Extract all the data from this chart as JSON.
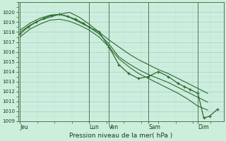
{
  "xlabel": "Pression niveau de la mer( hPa )",
  "background_color": "#cceedd",
  "grid_color_major": "#aacccc",
  "grid_color_minor": "#bbdddd",
  "line_color": "#2d6a2d",
  "ylim": [
    1009,
    1021
  ],
  "yticks": [
    1009,
    1010,
    1011,
    1012,
    1013,
    1014,
    1015,
    1016,
    1017,
    1018,
    1019,
    1020
  ],
  "day_labels": [
    "Jeu",
    "Lun",
    "Ven",
    "Sam",
    "Dim"
  ],
  "day_x": [
    0,
    3.5,
    4.5,
    6.5,
    9.0
  ],
  "xlim": [
    -0.1,
    10.3
  ],
  "lines": [
    {
      "x": [
        0,
        0.5,
        1.0,
        1.5,
        2.0,
        2.5,
        3.0,
        3.5,
        4.0,
        4.5,
        5.0,
        5.5,
        6.0,
        6.5,
        7.0,
        7.5,
        8.0,
        8.5,
        9.0,
        9.5
      ],
      "y": [
        1018.0,
        1018.7,
        1019.2,
        1019.5,
        1019.8,
        1020.0,
        1019.5,
        1018.8,
        1018.0,
        1017.2,
        1016.5,
        1015.8,
        1015.2,
        1014.7,
        1014.2,
        1013.8,
        1013.3,
        1012.8,
        1012.3,
        1011.8
      ],
      "marker": false
    },
    {
      "x": [
        0,
        0.5,
        1.0,
        1.5,
        2.0,
        2.5,
        3.0,
        3.5,
        4.0,
        4.5,
        5.0,
        5.5,
        6.0,
        6.5,
        7.0,
        7.5,
        8.0,
        8.5,
        9.0,
        9.5
      ],
      "y": [
        1018.2,
        1018.9,
        1019.4,
        1019.7,
        1019.8,
        1019.5,
        1019.0,
        1018.5,
        1017.8,
        1016.8,
        1015.5,
        1014.8,
        1014.2,
        1013.7,
        1013.3,
        1012.9,
        1012.4,
        1011.9,
        1011.4,
        1010.9
      ],
      "marker": false
    },
    {
      "x": [
        0,
        0.5,
        1.0,
        1.5,
        2.0,
        2.5,
        3.0,
        3.5,
        4.0,
        4.5,
        5.0,
        5.5,
        6.0,
        6.5,
        7.0,
        7.5,
        8.0,
        8.5,
        9.0,
        9.5
      ],
      "y": [
        1017.5,
        1018.3,
        1018.8,
        1019.2,
        1019.3,
        1019.1,
        1018.7,
        1018.2,
        1017.5,
        1016.5,
        1015.3,
        1014.5,
        1013.8,
        1013.3,
        1012.8,
        1012.3,
        1011.8,
        1011.2,
        1010.5,
        1010.1
      ],
      "marker": false
    },
    {
      "x": [
        0,
        0.4,
        0.8,
        1.2,
        1.6,
        2.0,
        2.4,
        2.8,
        3.2,
        3.5,
        4.0,
        4.5,
        5.0,
        5.5,
        6.0,
        6.5,
        7.0,
        7.5,
        8.0,
        8.3,
        8.6,
        9.0,
        9.3,
        9.6,
        10.0
      ],
      "y": [
        1017.8,
        1018.5,
        1019.0,
        1019.4,
        1019.7,
        1019.8,
        1019.6,
        1019.3,
        1018.9,
        1018.5,
        1018.0,
        1016.5,
        1014.7,
        1013.8,
        1013.3,
        1013.5,
        1014.0,
        1013.5,
        1012.8,
        1012.5,
        1012.2,
        1011.8,
        1009.3,
        1009.5,
        1010.2
      ],
      "marker": true
    }
  ]
}
